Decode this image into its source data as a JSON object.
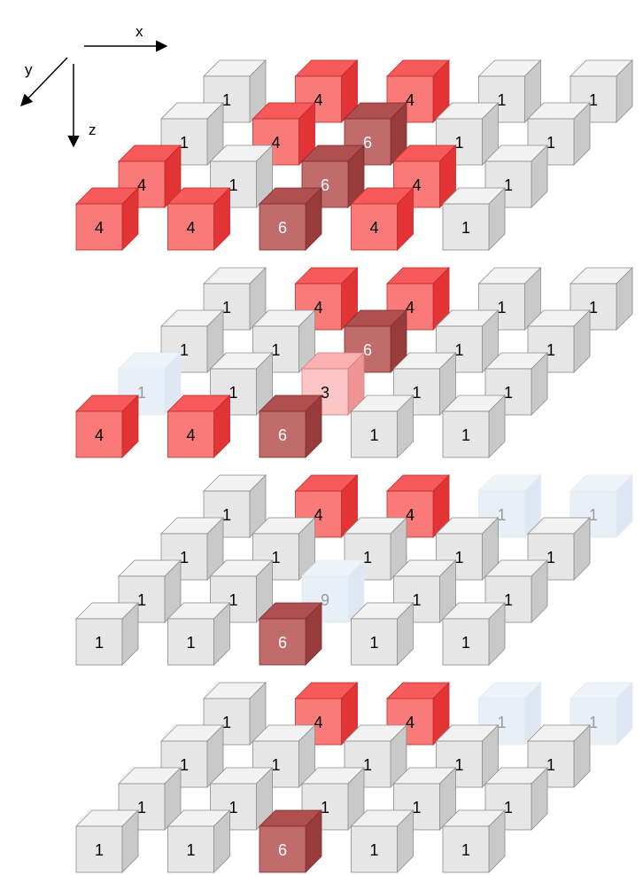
{
  "axes": {
    "x": "x",
    "y": "y",
    "z": "z"
  },
  "colors": {
    "gray": {
      "front": "#e6e6e6",
      "top": "#f2f2f2",
      "side": "#c9c9c9",
      "stroke": "#8c8c8c",
      "text": "#000000"
    },
    "red": {
      "front": "#fa7a7a",
      "top": "#f65a5a",
      "side": "#e23434",
      "stroke": "#c02a2a",
      "text": "#000000"
    },
    "dark": {
      "front": "#c26b6b",
      "top": "#b04f4f",
      "side": "#9a3b3b",
      "stroke": "#7a2d2d",
      "text": "#ffffff"
    },
    "pink": {
      "front": "#fcc6c6",
      "top": "#fbb0b0",
      "side": "#f09595",
      "stroke": "#d08080",
      "text": "#000000"
    },
    "ghost": {
      "front": "#e8eff7",
      "top": "#eef3f9",
      "side": "#dfe8f2",
      "stroke": "#e3eaf2",
      "text": "#9a9a9a"
    }
  },
  "layers": [
    {
      "rows": [
        {
          "cells": [
            {
              "label": "1",
              "style": "gray"
            },
            {
              "label": "4",
              "style": "red"
            },
            {
              "label": "4",
              "style": "red"
            },
            {
              "label": "1",
              "style": "gray"
            },
            {
              "label": "1",
              "style": "gray"
            }
          ]
        },
        {
          "cells": [
            {
              "label": "1",
              "style": "gray"
            },
            {
              "label": "4",
              "style": "red"
            },
            {
              "label": "6",
              "style": "dark"
            },
            {
              "label": "1",
              "style": "gray"
            },
            {
              "label": "1",
              "style": "gray"
            }
          ]
        },
        {
          "cells": [
            {
              "label": "4",
              "style": "red"
            },
            {
              "label": "1",
              "style": "gray"
            },
            {
              "label": "6",
              "style": "dark"
            },
            {
              "label": "4",
              "style": "red"
            },
            {
              "label": "1",
              "style": "gray"
            }
          ]
        },
        {
          "cells": [
            {
              "label": "4",
              "style": "red"
            },
            {
              "label": "4",
              "style": "red"
            },
            {
              "label": "6",
              "style": "dark"
            },
            {
              "label": "4",
              "style": "red"
            },
            {
              "label": "1",
              "style": "gray"
            }
          ]
        }
      ]
    },
    {
      "rows": [
        {
          "cells": [
            {
              "label": "1",
              "style": "gray"
            },
            {
              "label": "4",
              "style": "red"
            },
            {
              "label": "4",
              "style": "red"
            },
            {
              "label": "1",
              "style": "gray"
            },
            {
              "label": "1",
              "style": "gray"
            }
          ]
        },
        {
          "cells": [
            {
              "label": "1",
              "style": "gray"
            },
            {
              "label": "1",
              "style": "gray"
            },
            {
              "label": "6",
              "style": "dark"
            },
            {
              "label": "1",
              "style": "gray"
            },
            {
              "label": "1",
              "style": "gray"
            }
          ]
        },
        {
          "cells": [
            {
              "label": "1",
              "style": "ghost"
            },
            {
              "label": "1",
              "style": "gray"
            },
            {
              "label": "3",
              "style": "pink"
            },
            {
              "label": "1",
              "style": "gray"
            },
            {
              "label": "1",
              "style": "gray"
            }
          ]
        },
        {
          "cells": [
            {
              "label": "4",
              "style": "red"
            },
            {
              "label": "4",
              "style": "red"
            },
            {
              "label": "6",
              "style": "dark"
            },
            {
              "label": "1",
              "style": "gray"
            },
            {
              "label": "1",
              "style": "gray"
            }
          ]
        }
      ]
    },
    {
      "rows": [
        {
          "cells": [
            {
              "label": "1",
              "style": "gray"
            },
            {
              "label": "4",
              "style": "red"
            },
            {
              "label": "4",
              "style": "red"
            },
            {
              "label": "1",
              "style": "ghost"
            },
            {
              "label": "1",
              "style": "ghost"
            }
          ]
        },
        {
          "cells": [
            {
              "label": "1",
              "style": "gray"
            },
            {
              "label": "1",
              "style": "gray"
            },
            {
              "label": "1",
              "style": "gray"
            },
            {
              "label": "1",
              "style": "gray"
            },
            {
              "label": "1",
              "style": "gray"
            }
          ]
        },
        {
          "cells": [
            {
              "label": "1",
              "style": "gray"
            },
            {
              "label": "1",
              "style": "gray"
            },
            {
              "label": "9",
              "style": "ghost"
            },
            {
              "label": "1",
              "style": "gray"
            },
            {
              "label": "1",
              "style": "gray"
            }
          ]
        },
        {
          "cells": [
            {
              "label": "1",
              "style": "gray"
            },
            {
              "label": "1",
              "style": "gray"
            },
            {
              "label": "6",
              "style": "dark"
            },
            {
              "label": "1",
              "style": "gray"
            },
            {
              "label": "1",
              "style": "gray"
            }
          ]
        }
      ]
    },
    {
      "rows": [
        {
          "cells": [
            {
              "label": "1",
              "style": "gray"
            },
            {
              "label": "4",
              "style": "red"
            },
            {
              "label": "4",
              "style": "red"
            },
            {
              "label": "1",
              "style": "ghost"
            },
            {
              "label": "1",
              "style": "ghost"
            }
          ]
        },
        {
          "cells": [
            {
              "label": "1",
              "style": "gray"
            },
            {
              "label": "1",
              "style": "gray"
            },
            {
              "label": "1",
              "style": "gray"
            },
            {
              "label": "1",
              "style": "gray"
            },
            {
              "label": "1",
              "style": "gray"
            }
          ]
        },
        {
          "cells": [
            {
              "label": "1",
              "style": "gray"
            },
            {
              "label": "1",
              "style": "gray"
            },
            {
              "label": "1",
              "style": "gray"
            },
            {
              "label": "1",
              "style": "gray"
            },
            {
              "label": "1",
              "style": "gray"
            }
          ]
        },
        {
          "cells": [
            {
              "label": "1",
              "style": "gray"
            },
            {
              "label": "1",
              "style": "gray"
            },
            {
              "label": "6",
              "style": "dark"
            },
            {
              "label": "1",
              "style": "gray"
            },
            {
              "label": "1",
              "style": "gray"
            }
          ]
        }
      ]
    }
  ]
}
